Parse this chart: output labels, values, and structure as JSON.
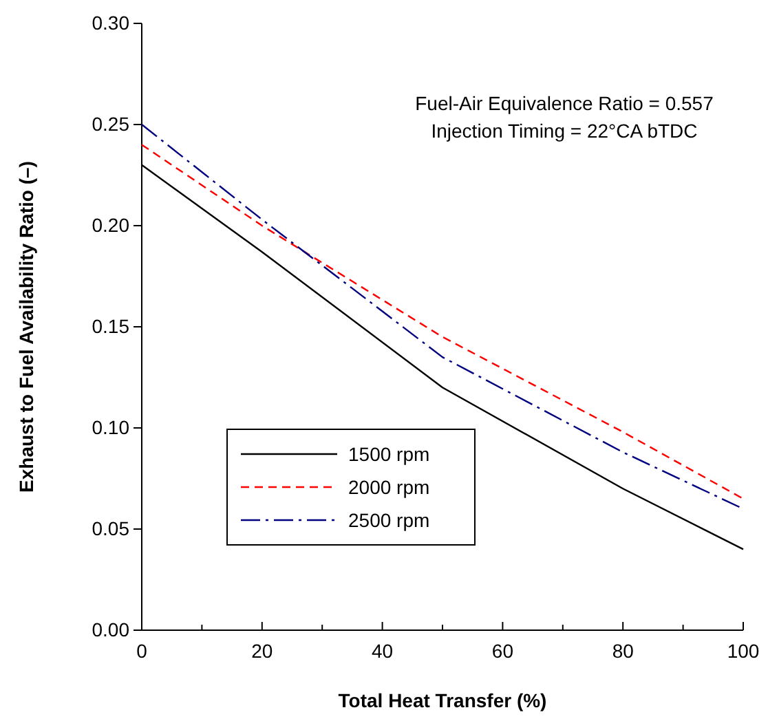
{
  "chart_data": {
    "type": "line",
    "xlabel": "Total Heat Transfer (%)",
    "ylabel": "Exhaust to Fuel Availability Ratio (–)",
    "annotations": [
      "Fuel-Air Equivalence Ratio = 0.557",
      "Injection Timing = 22°CA bTDC"
    ],
    "x": [
      0,
      20,
      50,
      80,
      100
    ],
    "series": [
      {
        "name": "1500 rpm",
        "color": "#000000",
        "line_style": "solid",
        "values": [
          0.23,
          0.187,
          0.12,
          0.07,
          0.04
        ]
      },
      {
        "name": "2000 rpm",
        "color": "#ff0000",
        "line_style": "dashed",
        "values": [
          0.24,
          0.2,
          0.145,
          0.098,
          0.065
        ]
      },
      {
        "name": "2500 rpm",
        "color": "#000080",
        "line_style": "dashdot",
        "values": [
          0.25,
          0.203,
          0.135,
          0.088,
          0.06
        ]
      }
    ],
    "xlim": [
      0,
      100
    ],
    "xticks": [
      0,
      {
        "value": 10,
        "label": null
      },
      20,
      {
        "value": 30,
        "label": null
      },
      40,
      {
        "value": 50,
        "label": null
      },
      60,
      {
        "value": 70,
        "label": null
      },
      80,
      {
        "value": 90,
        "label": null
      },
      100
    ],
    "ylim": [
      0,
      0.3
    ],
    "yticks": [
      {
        "value": 0,
        "label": "0.00"
      },
      {
        "value": 0.05,
        "label": "0.05"
      },
      {
        "value": 0.1,
        "label": "0.10"
      },
      {
        "value": 0.15,
        "label": "0.15"
      },
      {
        "value": 0.2,
        "label": "0.20"
      },
      {
        "value": 0.25,
        "label": "0.25"
      },
      {
        "value": 0.3,
        "label": "0.30"
      }
    ],
    "grid": false,
    "legend": "bottom left",
    "marker": "none"
  }
}
